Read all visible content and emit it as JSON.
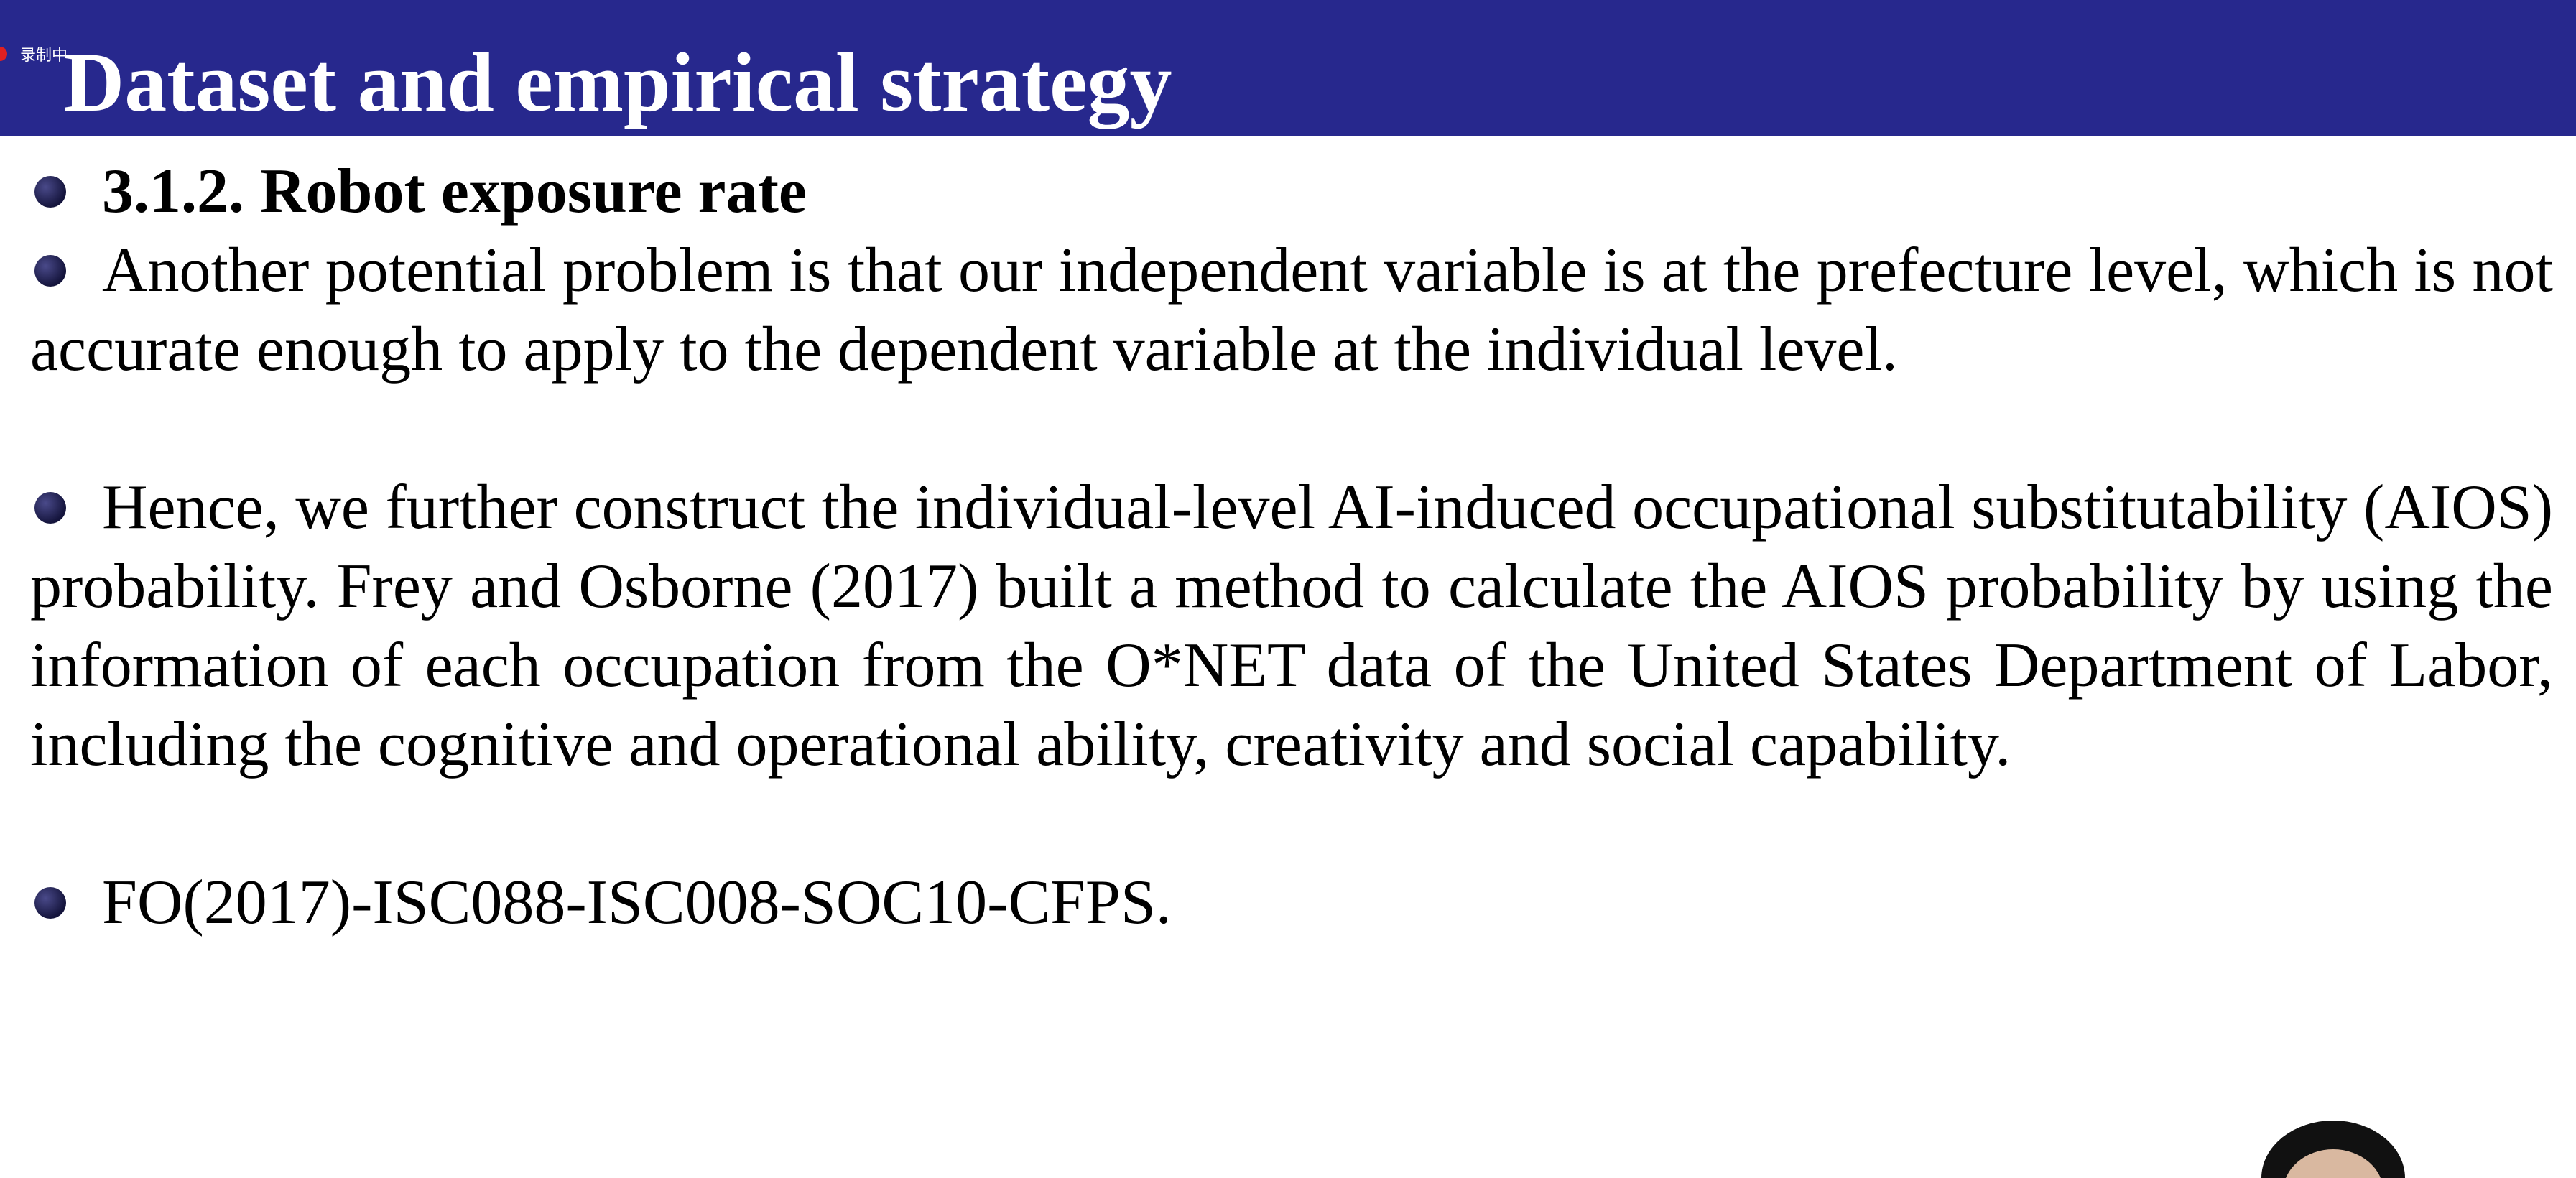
{
  "recording": {
    "label": "录制中"
  },
  "slide": {
    "title": "Dataset and empirical strategy",
    "heading": "3.1.2. Robot exposure rate",
    "paragraphs": [
      "Another potential problem is that our independent variable is at the prefecture level, which is not accurate enough to apply to the dependent variable at the individual level.",
      "Hence, we further construct the individual-level AI-induced occupational substitutability (AIOS) probability. Frey and Osborne (2017) built a method to calculate the AIOS probability by using the information of each occupation from the O*NET data of the United States Department of Labor, including the cognitive and operational ability, creativity and social capability.",
      "FO(2017)-ISC088-ISC008-SOC10-CFPS."
    ]
  },
  "colors": {
    "title_bar": "#27288d",
    "title_text": "#ffffff",
    "bullet": "#14143c"
  },
  "icons": {
    "bullet": "bullet-dot-icon",
    "recording": "recording-dot-icon"
  }
}
